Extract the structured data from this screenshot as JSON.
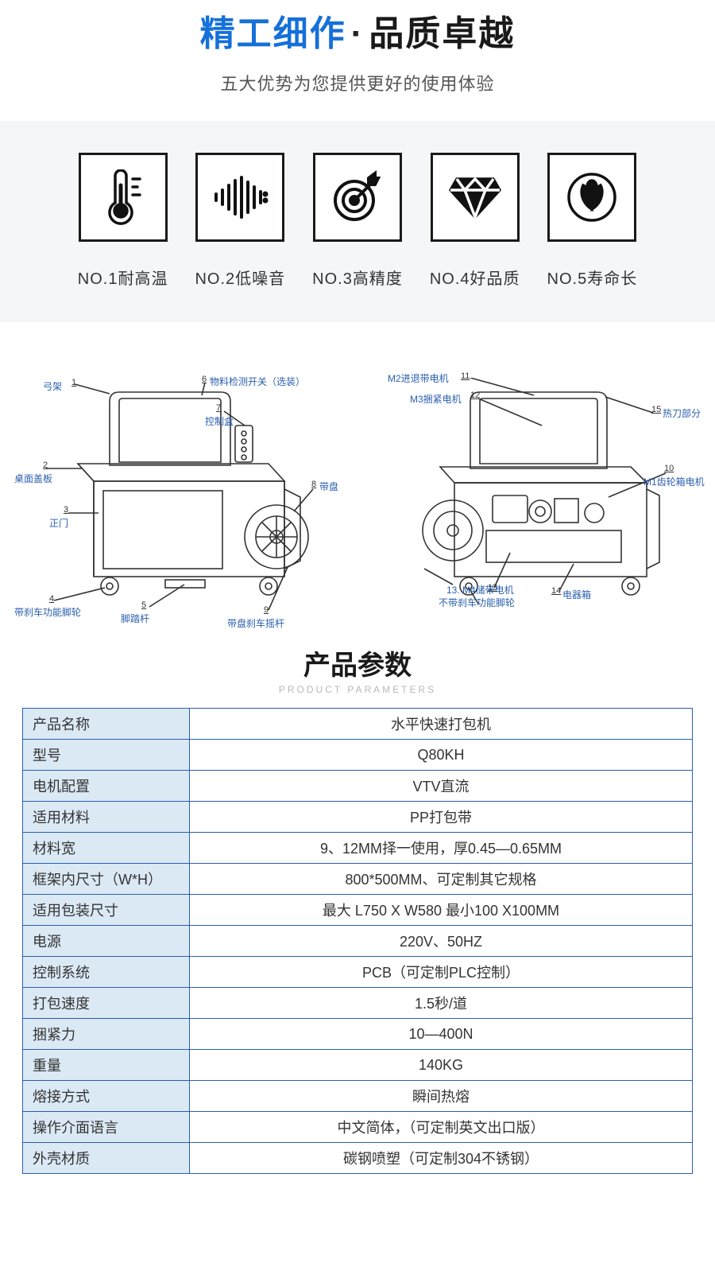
{
  "header": {
    "title_blue": "精工细作",
    "title_dot": "·",
    "title_black": "品质卓越",
    "subtitle": "五大优势为您提供更好的使用体验"
  },
  "features": [
    {
      "label": "NO.1耐高温",
      "icon": "thermometer"
    },
    {
      "label": "NO.2低噪音",
      "icon": "soundwave"
    },
    {
      "label": "NO.3高精度",
      "icon": "target"
    },
    {
      "label": "NO.4好品质",
      "icon": "diamond"
    },
    {
      "label": "NO.5寿命长",
      "icon": "leaf"
    }
  ],
  "diagram": {
    "left": {
      "labels": {
        "n1": "弓架",
        "n2": "桌面盖板",
        "n3": "正门",
        "n4": "带刹车功能脚轮",
        "n5": "脚踏杆",
        "n6": "物料检测开关（选装）",
        "n7": "控制盒",
        "n8": "带盘",
        "n9": "带盘刹车摇杆"
      }
    },
    "right": {
      "labels": {
        "n10": "M1齿轮箱电机",
        "n11": "M2进退带电机",
        "n12": "M3捆紧电机",
        "n13": "13. M4储带电机",
        "n14a": "不带刹车功能脚轮",
        "n14b": "电器箱",
        "n15": "热刀部分"
      }
    }
  },
  "params": {
    "title": "产品参数",
    "subtitle": "PRODUCT PARAMETERS",
    "rows": [
      {
        "label": "产品名称",
        "value": "水平快速打包机"
      },
      {
        "label": "型号",
        "value": "Q80KH"
      },
      {
        "label": "电机配置",
        "value": "VTV直流"
      },
      {
        "label": "适用材料",
        "value": "PP打包带"
      },
      {
        "label": "材料宽",
        "value": "9、12MM择一使用，厚0.45—0.65MM"
      },
      {
        "label": "框架内尺寸（W*H）",
        "value": "800*500MM、可定制其它规格"
      },
      {
        "label": "适用包装尺寸",
        "value": "最大 L750 X W580 最小100 X100MM"
      },
      {
        "label": "电源",
        "value": "220V、50HZ"
      },
      {
        "label": "控制系统",
        "value": "PCB（可定制PLC控制）"
      },
      {
        "label": "打包速度",
        "value": "1.5秒/道"
      },
      {
        "label": "捆紧力",
        "value": "10—400N"
      },
      {
        "label": "重量",
        "value": "140KG"
      },
      {
        "label": "熔接方式",
        "value": "瞬间热熔"
      },
      {
        "label": "操作介面语言",
        "value": "中文简体，（可定制英文出口版）"
      },
      {
        "label": "外壳材质",
        "value": "碳钢喷塑（可定制304不锈钢）"
      }
    ]
  },
  "colors": {
    "accent_blue": "#1570d8",
    "label_blue": "#2a5fb0",
    "light_bg": "#f5f6f7",
    "table_header_bg": "#dbe9f5"
  }
}
